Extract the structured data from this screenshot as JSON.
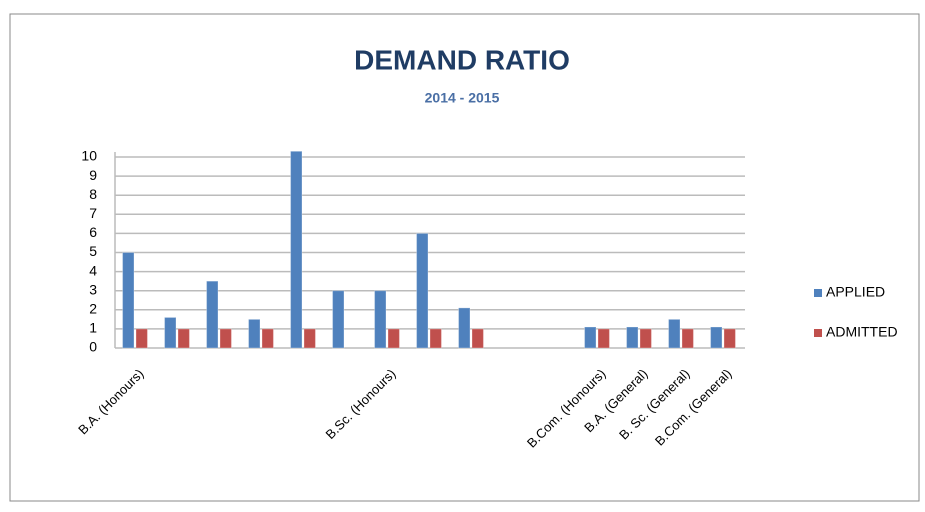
{
  "chart_data": {
    "type": "bar",
    "title": "DEMAND RATIO",
    "subtitle": "2014 - 2015",
    "categories": [
      "B.A. (Honours)",
      null,
      null,
      null,
      null,
      null,
      "B.Sc. (Honours)",
      null,
      null,
      null,
      null,
      "B.Com. (Honours)",
      "B.A. (General)",
      "B. Sc. (General)",
      "B.Com. (General)"
    ],
    "series": [
      {
        "name": "APPLIED",
        "color": "#4f81bd",
        "values": [
          5,
          1.6,
          3.5,
          1.5,
          10.3,
          3,
          3,
          6,
          2.1,
          0,
          0,
          1.1,
          1.1,
          1.5,
          1.1
        ]
      },
      {
        "name": "ADMITTED",
        "color": "#c0504d",
        "values": [
          1,
          1,
          1,
          1,
          1,
          0,
          1,
          1,
          1,
          0,
          0,
          1,
          1,
          1,
          1
        ]
      }
    ],
    "ylim": [
      0,
      10
    ],
    "yticks": [
      0,
      1,
      2,
      3,
      4,
      5,
      6,
      7,
      8,
      9,
      10
    ],
    "grid": true,
    "legend": "right"
  }
}
